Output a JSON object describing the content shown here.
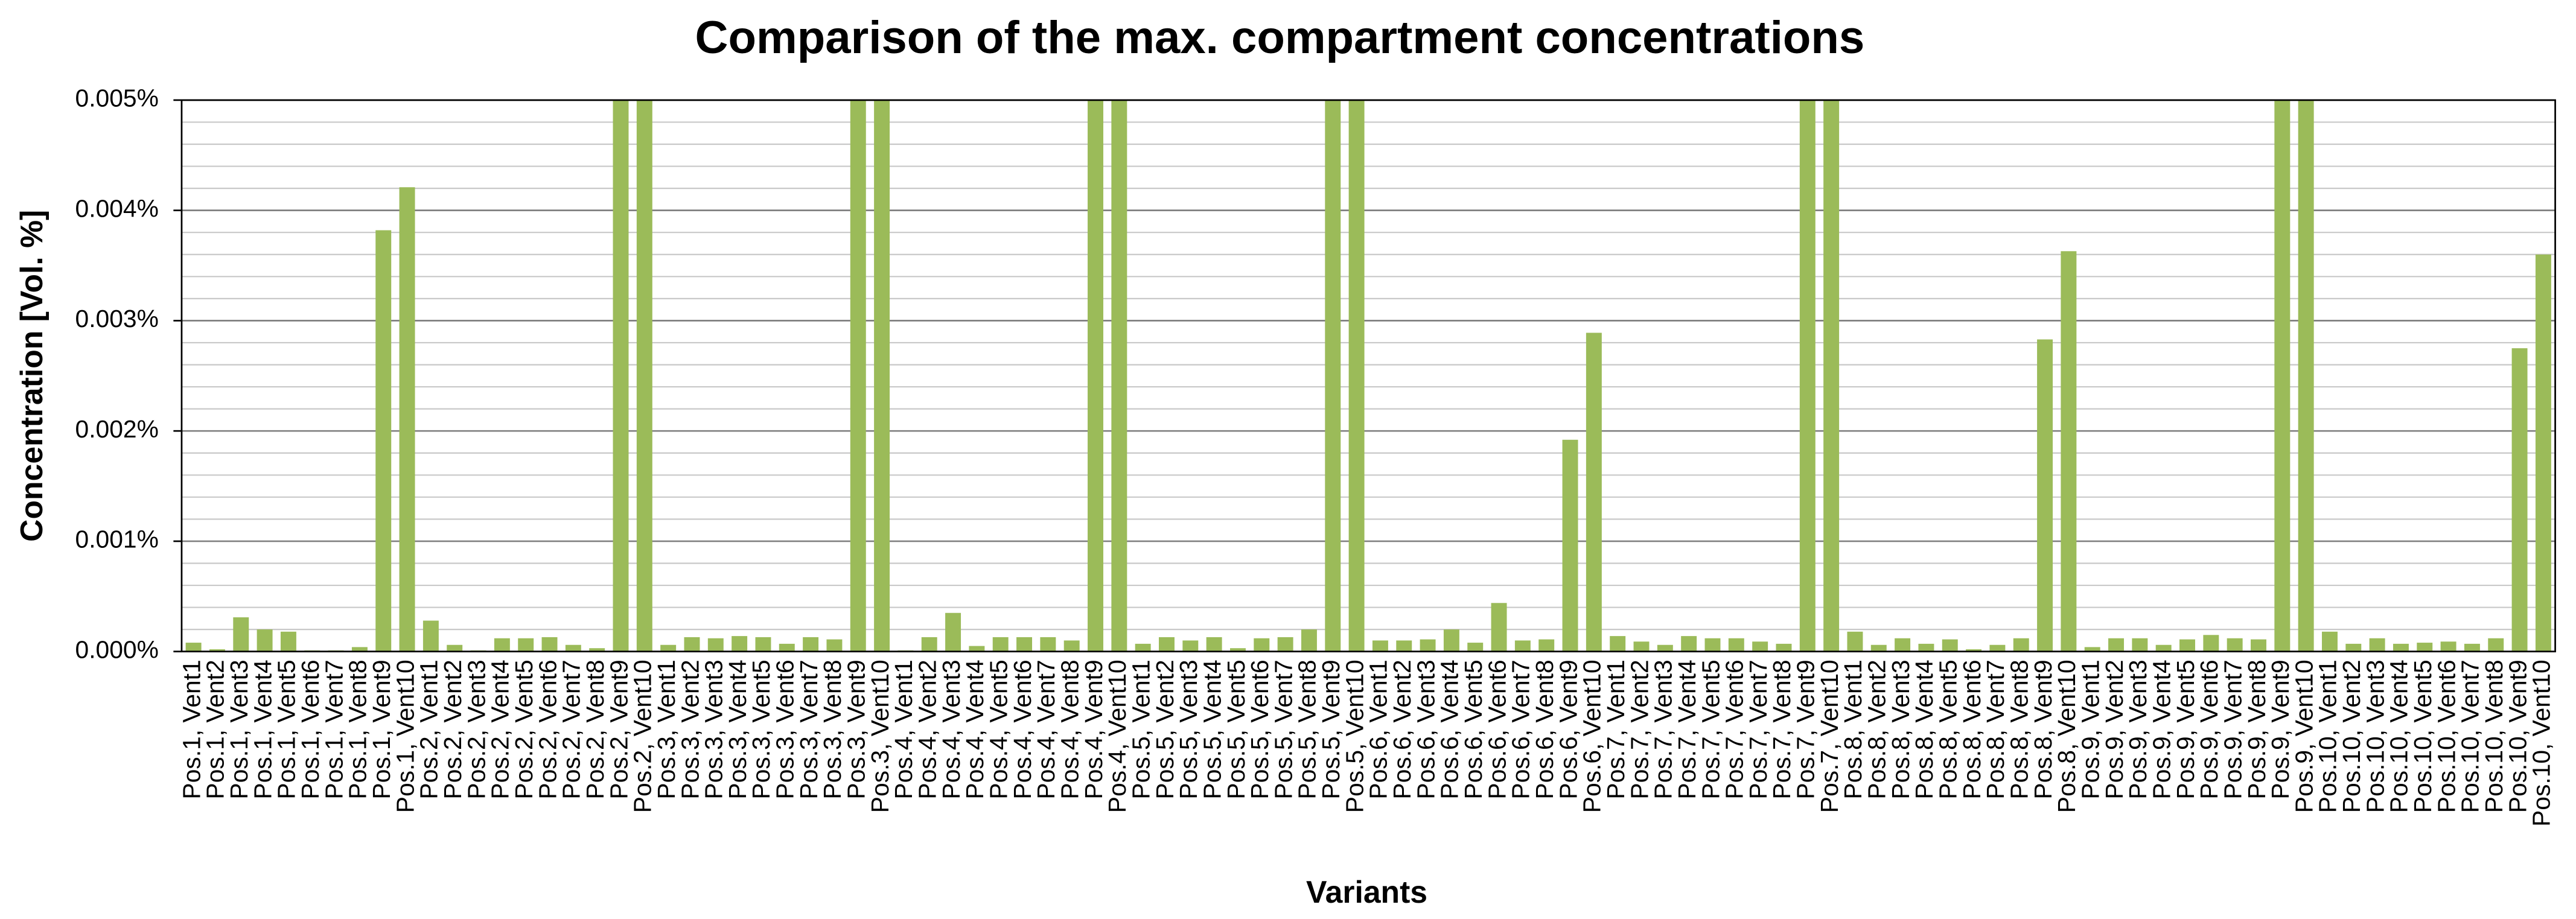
{
  "chart_data": {
    "type": "bar",
    "title": "Comparison of the max. compartment concentrations",
    "x_label": "Variants",
    "y_label": "Concentration [Vol. %]",
    "color": "#9bbb59",
    "grid": true,
    "ylim": [
      0,
      0.005
    ],
    "yticks": [
      {
        "value": 0,
        "label": "0.000%"
      },
      {
        "value": 0.001,
        "label": "0.001%"
      },
      {
        "value": 0.002,
        "label": "0.002%"
      },
      {
        "value": 0.003,
        "label": "0.003%"
      },
      {
        "value": 0.004,
        "label": "0.004%"
      },
      {
        "value": 0.005,
        "label": "0.005%"
      }
    ],
    "minor_yticks": [
      0.0002,
      0.0004,
      0.0006,
      0.0008,
      0.0012,
      0.0014,
      0.0016,
      0.0018,
      0.0022,
      0.0024,
      0.0026,
      0.0028,
      0.0032,
      0.0034,
      0.0036,
      0.0038,
      0.0042,
      0.0044,
      0.0046,
      0.0048
    ],
    "categories": [
      "Pos.1, Vent1",
      "Pos.1, Vent2",
      "Pos.1, Vent3",
      "Pos.1, Vent4",
      "Pos.1, Vent5",
      "Pos.1, Vent6",
      "Pos.1, Vent7",
      "Pos.1, Vent8",
      "Pos.1, Vent9",
      "Pos.1, Vent10",
      "Pos.2, Vent1",
      "Pos.2, Vent2",
      "Pos.2, Vent3",
      "Pos.2, Vent4",
      "Pos.2, Vent5",
      "Pos.2, Vent6",
      "Pos.2, Vent7",
      "Pos.2, Vent8",
      "Pos.2, Vent9",
      "Pos.2, Vent10",
      "Pos.3, Vent1",
      "Pos.3, Vent2",
      "Pos.3, Vent3",
      "Pos.3, Vent4",
      "Pos.3, Vent5",
      "Pos.3, Vent6",
      "Pos.3, Vent7",
      "Pos.3, Vent8",
      "Pos.3, Vent9",
      "Pos.3, Vent10",
      "Pos.4, Vent1",
      "Pos.4, Vent2",
      "Pos.4, Vent3",
      "Pos.4, Vent4",
      "Pos.4, Vent5",
      "Pos.4, Vent6",
      "Pos.4, Vent7",
      "Pos.4, Vent8",
      "Pos.4, Vent9",
      "Pos.4, Vent10",
      "Pos.5, Vent1",
      "Pos.5, Vent2",
      "Pos.5, Vent3",
      "Pos.5, Vent4",
      "Pos.5, Vent5",
      "Pos.5, Vent6",
      "Pos.5, Vent7",
      "Pos.5, Vent8",
      "Pos.5, Vent9",
      "Pos.5, Vent10",
      "Pos.6, Vent1",
      "Pos.6, Vent2",
      "Pos.6, Vent3",
      "Pos.6, Vent4",
      "Pos.6, Vent5",
      "Pos.6, Vent6",
      "Pos.6, Vent7",
      "Pos.6, Vent8",
      "Pos.6, Vent9",
      "Pos.6, Vent10",
      "Pos.7, Vent1",
      "Pos.7, Vent2",
      "Pos.7, Vent3",
      "Pos.7, Vent4",
      "Pos.7, Vent5",
      "Pos.7, Vent6",
      "Pos.7, Vent7",
      "Pos.7, Vent8",
      "Pos.7, Vent9",
      "Pos.7, Vent10",
      "Pos.8, Vent1",
      "Pos.8, Vent2",
      "Pos.8, Vent3",
      "Pos.8, Vent4",
      "Pos.8, Vent5",
      "Pos.8, Vent6",
      "Pos.8, Vent7",
      "Pos.8, Vent8",
      "Pos.8, Vent9",
      "Pos.8, Vent10",
      "Pos.9, Vent1",
      "Pos.9, Vent2",
      "Pos.9, Vent3",
      "Pos.9, Vent4",
      "Pos.9, Vent5",
      "Pos.9, Vent6",
      "Pos.9, Vent7",
      "Pos.9, Vent8",
      "Pos.9, Vent9",
      "Pos.9, Vent10",
      "Pos.10, Vent1",
      "Pos.10, Vent2",
      "Pos.10, Vent3",
      "Pos.10, Vent4",
      "Pos.10, Vent5",
      "Pos.10, Vent6",
      "Pos.10, Vent7",
      "Pos.10, Vent8",
      "Pos.10, Vent9",
      "Pos.10, Vent10"
    ],
    "values": [
      8e-05,
      2e-05,
      0.00031,
      0.0002,
      0.00018,
      1e-05,
      1e-05,
      4e-05,
      0.00382,
      0.00421,
      0.00028,
      6e-05,
      1e-05,
      0.00012,
      0.00012,
      0.00013,
      6e-05,
      3e-05,
      0.005,
      0.005,
      6e-05,
      0.00013,
      0.00012,
      0.00014,
      0.00013,
      7e-05,
      0.00013,
      0.00011,
      0.005,
      0.005,
      1e-05,
      0.00013,
      0.00035,
      5e-05,
      0.00013,
      0.00013,
      0.00013,
      0.0001,
      0.005,
      0.005,
      7e-05,
      0.00013,
      0.0001,
      0.00013,
      3e-05,
      0.00012,
      0.00013,
      0.0002,
      0.005,
      0.005,
      0.0001,
      0.0001,
      0.00011,
      0.0002,
      8e-05,
      0.00044,
      0.0001,
      0.00011,
      0.00192,
      0.00289,
      0.00014,
      9e-05,
      6e-05,
      0.00014,
      0.00012,
      0.00012,
      9e-05,
      7e-05,
      0.005,
      0.005,
      0.00018,
      6e-05,
      0.00012,
      7e-05,
      0.00011,
      2e-05,
      6e-05,
      0.00012,
      0.00283,
      0.00363,
      4e-05,
      0.00012,
      0.00012,
      6e-05,
      0.00011,
      0.00015,
      0.00012,
      0.00011,
      0.005,
      0.005,
      0.00018,
      7e-05,
      0.00012,
      7e-05,
      8e-05,
      9e-05,
      7e-05,
      0.00012,
      0.00275,
      0.0036
    ]
  }
}
